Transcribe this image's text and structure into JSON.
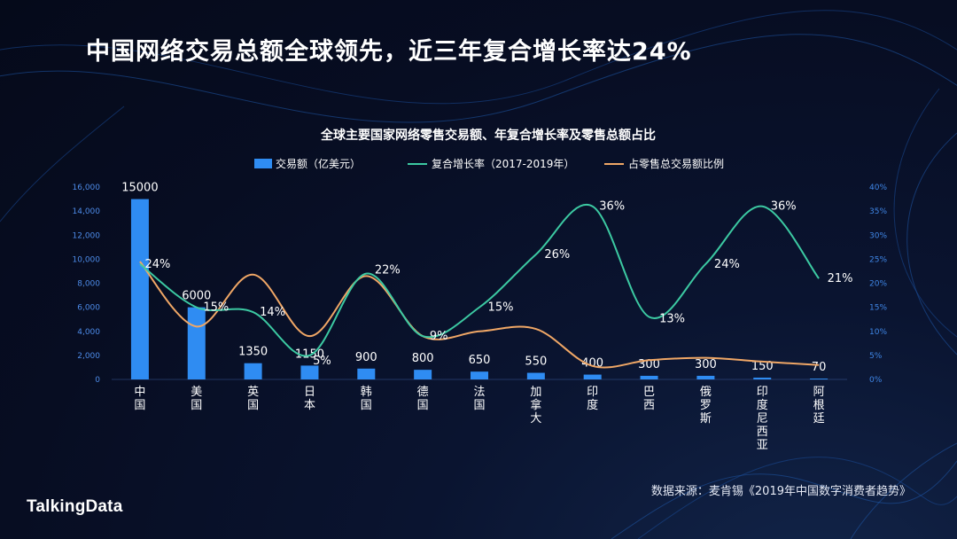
{
  "headline": "中国网络交易总额全球领先，近三年复合增长率达24%",
  "source_note": "数据来源：麦肯锡《2019年中国数字消费者趋势》",
  "brand": "TalkingData",
  "colors": {
    "bar": "#2f8cf2",
    "growth_line": "#3cc9a2",
    "share_line": "#f0a766",
    "left_axis": "#4d8be8",
    "right_axis": "#3f86e6",
    "text": "#ffffff"
  },
  "chart_data": {
    "type": "bar",
    "title": "全球主要国家网络零售交易额、年复合增长率及零售总额占比",
    "categories": [
      "中国",
      "美国",
      "英国",
      "日本",
      "韩国",
      "德国",
      "法国",
      "加拿大",
      "印度",
      "巴西",
      "俄罗斯",
      "印度尼西亚",
      "阿根廷"
    ],
    "legend_position": "top",
    "grid": false,
    "series": [
      {
        "name": "交易额（亿美元）",
        "type": "bar",
        "axis": "left",
        "values": [
          15000,
          6000,
          1350,
          1150,
          900,
          800,
          650,
          550,
          400,
          300,
          300,
          150,
          70
        ],
        "labels": [
          "15000",
          "6000",
          "1350",
          "1150",
          "900",
          "800",
          "650",
          "550",
          "400",
          "300",
          "300",
          "150",
          "70"
        ]
      },
      {
        "name": "复合增长率（2017-2019年）",
        "type": "line",
        "axis": "right",
        "values": [
          24,
          15,
          14,
          5,
          22,
          9,
          15,
          26,
          36,
          13,
          24,
          36,
          21
        ],
        "labels": [
          "24%",
          "15%",
          "14%",
          "5%",
          "22%",
          "9%",
          "15%",
          "26%",
          "36%",
          "13%",
          "24%",
          "36%",
          "21%"
        ]
      },
      {
        "name": "占零售总交易额比例",
        "type": "line",
        "axis": "right",
        "values": [
          24.5,
          11.0,
          21.8,
          9.0,
          21.5,
          9.0,
          10.0,
          10.5,
          2.8,
          4.0,
          4.5,
          3.7,
          3.0
        ]
      }
    ],
    "y_left": {
      "ylim": [
        0,
        16000
      ],
      "ticks": [
        "0",
        "2,000",
        "4,000",
        "6,000",
        "8,000",
        "10,000",
        "12,000",
        "14,000",
        "16,000"
      ]
    },
    "y_right": {
      "ylim": [
        0,
        40
      ],
      "ticks": [
        "0%",
        "5%",
        "10%",
        "15%",
        "20%",
        "25%",
        "30%",
        "35%",
        "40%"
      ]
    }
  }
}
